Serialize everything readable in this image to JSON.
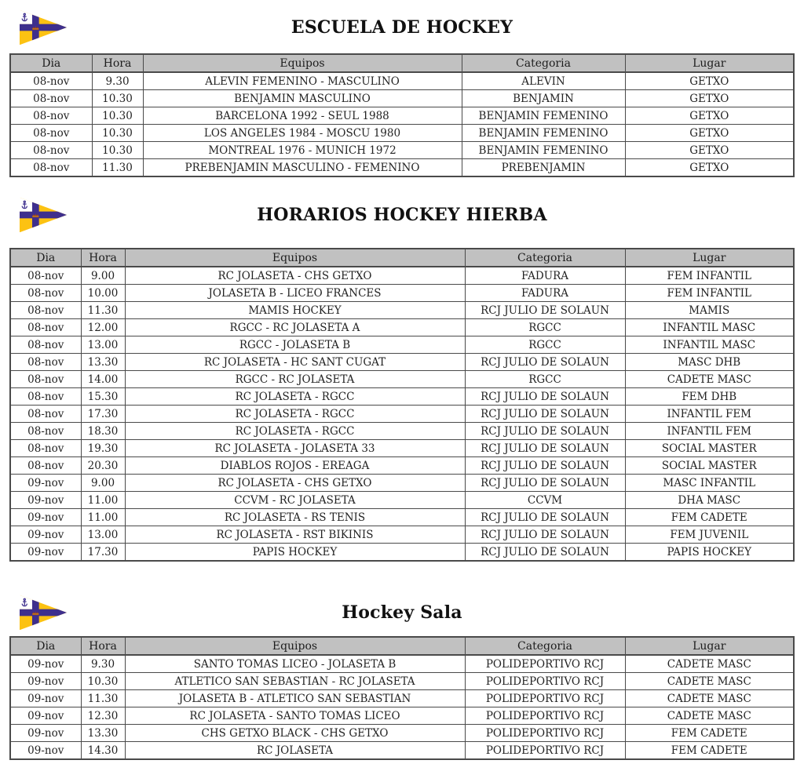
{
  "theme": {
    "page_bg": "#ffffff",
    "text_color": "#232323",
    "title_color": "#111111",
    "border": "#4a4a4a",
    "header_bg": "#c1c1c1",
    "burgee_yellow": "#fcc212",
    "burgee_purple": "#3e2f8d",
    "burgee_crown": "#9c4420",
    "burgee_white": "#ffffff"
  },
  "logo": {
    "name": "club-burgee-pennant",
    "elements": [
      "anchor-icon",
      "cross-bands",
      "crown-icon"
    ]
  },
  "sections": [
    {
      "title": "ESCUELA DE HOCKEY",
      "columns": [
        "Dia",
        "Hora",
        "Equipos",
        "Categoria",
        "Lugar"
      ],
      "rows": [
        [
          "08-nov",
          "9.30",
          "ALEVIN FEMENINO - MASCULINO",
          "ALEVIN",
          "GETXO"
        ],
        [
          "08-nov",
          "10.30",
          "BENJAMIN MASCULINO",
          "BENJAMIN",
          "GETXO"
        ],
        [
          "08-nov",
          "10.30",
          "BARCELONA 1992 - SEUL 1988",
          "BENJAMIN FEMENINO",
          "GETXO"
        ],
        [
          "08-nov",
          "10.30",
          "LOS ANGELES 1984 - MOSCU 1980",
          "BENJAMIN FEMENINO",
          "GETXO"
        ],
        [
          "08-nov",
          "10.30",
          "MONTREAL 1976 - MUNICH 1972",
          "BENJAMIN FEMENINO",
          "GETXO"
        ],
        [
          "08-nov",
          "11.30",
          "PREBENJAMIN MASCULINO - FEMENINO",
          "PREBENJAMIN",
          "GETXO"
        ]
      ]
    },
    {
      "title": "HORARIOS HOCKEY HIERBA",
      "columns": [
        "Dia",
        "Hora",
        "Equipos",
        "Categoria",
        "Lugar"
      ],
      "rows": [
        [
          "08-nov",
          "9.00",
          "RC JOLASETA - CHS GETXO",
          "FADURA",
          "FEM INFANTIL"
        ],
        [
          "08-nov",
          "10.00",
          "JOLASETA B - LICEO FRANCES",
          "FADURA",
          "FEM INFANTIL"
        ],
        [
          "08-nov",
          "11.30",
          "MAMIS HOCKEY",
          "RCJ JULIO DE SOLAUN",
          "MAMIS"
        ],
        [
          "08-nov",
          "12.00",
          "RGCC - RC JOLASETA A",
          "RGCC",
          "INFANTIL MASC"
        ],
        [
          "08-nov",
          "13.00",
          "RGCC -  JOLASETA B",
          "RGCC",
          "INFANTIL MASC"
        ],
        [
          "08-nov",
          "13.30",
          "RC JOLASETA - HC SANT CUGAT",
          "RCJ JULIO DE SOLAUN",
          "MASC DHB"
        ],
        [
          "08-nov",
          "14.00",
          "RGCC - RC JOLASETA",
          "RGCC",
          "CADETE MASC"
        ],
        [
          "08-nov",
          "15.30",
          "RC JOLASETA - RGCC",
          "RCJ JULIO DE SOLAUN",
          "FEM DHB"
        ],
        [
          "08-nov",
          "17.30",
          "RC JOLASETA - RGCC",
          "RCJ JULIO DE SOLAUN",
          "INFANTIL FEM"
        ],
        [
          "08-nov",
          "18.30",
          "RC JOLASETA - RGCC",
          "RCJ JULIO DE SOLAUN",
          "INFANTIL FEM"
        ],
        [
          "08-nov",
          "19.30",
          "RC JOLASETA - JOLASETA 33",
          "RCJ JULIO DE SOLAUN",
          "SOCIAL MASTER"
        ],
        [
          "08-nov",
          "20.30",
          "DIABLOS ROJOS - EREAGA",
          "RCJ JULIO DE SOLAUN",
          "SOCIAL MASTER"
        ],
        [
          "09-nov",
          "9.00",
          "RC JOLASETA - CHS GETXO",
          "RCJ JULIO DE SOLAUN",
          "MASC INFANTIL"
        ],
        [
          "09-nov",
          "11.00",
          "CCVM - RC JOLASETA",
          "CCVM",
          "DHA MASC"
        ],
        [
          "09-nov",
          "11.00",
          "RC JOLASETA - RS TENIS",
          "RCJ JULIO DE SOLAUN",
          "FEM CADETE"
        ],
        [
          "09-nov",
          "13.00",
          "RC JOLASETA - RST BIKINIS",
          "RCJ JULIO DE SOLAUN",
          "FEM JUVENIL"
        ],
        [
          "09-nov",
          "17.30",
          "PAPIS HOCKEY",
          "RCJ JULIO DE SOLAUN",
          "PAPIS HOCKEY"
        ]
      ]
    },
    {
      "title": "Hockey Sala",
      "columns": [
        "Dia",
        "Hora",
        "Equipos",
        "Categoria",
        "Lugar"
      ],
      "rows": [
        [
          "09-nov",
          "9.30",
          "SANTO TOMAS LICEO - JOLASETA B",
          "POLIDEPORTIVO RCJ",
          "CADETE MASC"
        ],
        [
          "09-nov",
          "10.30",
          "ATLETICO SAN SEBASTIAN - RC JOLASETA",
          "POLIDEPORTIVO RCJ",
          "CADETE MASC"
        ],
        [
          "09-nov",
          "11.30",
          "JOLASETA B - ATLETICO SAN SEBASTIAN",
          "POLIDEPORTIVO RCJ",
          "CADETE MASC"
        ],
        [
          "09-nov",
          "12.30",
          "RC JOLASETA - SANTO TOMAS LICEO",
          "POLIDEPORTIVO RCJ",
          "CADETE MASC"
        ],
        [
          "09-nov",
          "13.30",
          "CHS GETXO BLACK - CHS GETXO",
          "POLIDEPORTIVO RCJ",
          "FEM CADETE"
        ],
        [
          "09-nov",
          "14.30",
          "RC JOLASETA",
          "POLIDEPORTIVO RCJ",
          "FEM CADETE"
        ]
      ]
    }
  ]
}
